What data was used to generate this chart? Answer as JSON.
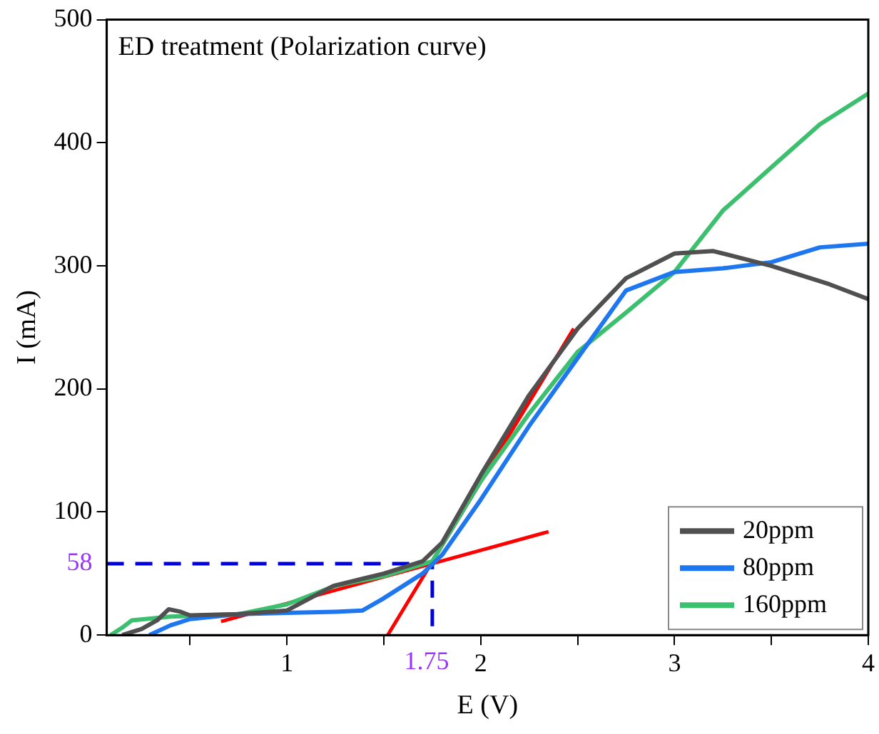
{
  "chart_data": {
    "type": "line",
    "title": "ED treatment (Polarization curve)",
    "xlabel": "E (V)",
    "ylabel": "I (mA)",
    "xlim": [
      0.07,
      4
    ],
    "ylim": [
      0,
      500
    ],
    "xticks": [
      {
        "value": 0.5,
        "label": null
      },
      1,
      {
        "value": 1.5,
        "label": null
      },
      2,
      {
        "value": 2.5,
        "label": null
      },
      3,
      {
        "value": 3.5,
        "label": null
      },
      4
    ],
    "yticks": [
      0,
      100,
      200,
      300,
      400,
      500
    ],
    "legend": "bottom right",
    "marker": "none",
    "grid": false,
    "series": [
      {
        "name": "20ppm",
        "color": "#505050",
        "x": [
          0.15,
          0.25,
          0.33,
          0.39,
          0.45,
          0.5,
          0.75,
          1,
          1.24,
          1.5,
          1.7,
          1.8,
          2,
          2.25,
          2.5,
          2.75,
          3,
          3.2,
          3.5,
          3.8,
          4
        ],
        "values": [
          0,
          5,
          12,
          21,
          19,
          16,
          17,
          20,
          40,
          50,
          60,
          75,
          130,
          195,
          249,
          290,
          310,
          312,
          300,
          285,
          273
        ]
      },
      {
        "name": "80ppm",
        "color": "#1f77f0",
        "x": [
          0.29,
          0.4,
          0.5,
          0.75,
          1,
          1.25,
          1.39,
          1.49,
          1.6,
          1.7,
          1.8,
          2,
          2.25,
          2.5,
          2.75,
          3,
          3.25,
          3.5,
          3.75,
          4
        ],
        "values": [
          0,
          8,
          13,
          17,
          18,
          19,
          20,
          29,
          40,
          50,
          65,
          110,
          170,
          225,
          280,
          295,
          298,
          303,
          315,
          318
        ]
      },
      {
        "name": "160ppm",
        "color": "#3cbf6e",
        "x": [
          0.09,
          0.15,
          0.2,
          0.4,
          0.75,
          1,
          1.25,
          1.5,
          1.75,
          2,
          2.25,
          2.5,
          2.75,
          3,
          3.25,
          3.5,
          3.75,
          4
        ],
        "values": [
          0,
          6,
          12,
          15,
          17,
          25,
          40,
          48,
          60,
          125,
          180,
          230,
          262,
          295,
          345,
          380,
          415,
          440
        ]
      },
      {
        "type": "line",
        "color": "#ff0000",
        "x": [
          0.66,
          2.35
        ],
        "values": [
          11,
          84
        ]
      },
      {
        "type": "line",
        "color": "#ff0000",
        "x": [
          1.52,
          2.48
        ],
        "values": [
          0,
          249
        ]
      },
      {
        "type": "line",
        "color": "#0000dd",
        "line_style": "dashed",
        "x": [
          0.07,
          1.75,
          1.75
        ],
        "values": [
          58,
          58,
          0
        ]
      }
    ],
    "annotations": [
      {
        "text": "58",
        "x": 0.07,
        "y": 58
      },
      {
        "text": "1.75",
        "x": 1.75,
        "y": 0
      }
    ]
  }
}
